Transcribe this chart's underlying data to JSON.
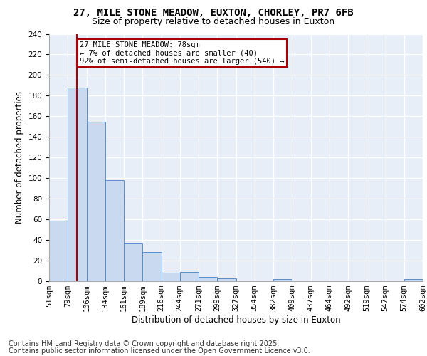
{
  "title_line1": "27, MILE STONE MEADOW, EUXTON, CHORLEY, PR7 6FB",
  "title_line2": "Size of property relative to detached houses in Euxton",
  "xlabel": "Distribution of detached houses by size in Euxton",
  "ylabel": "Number of detached properties",
  "bins": [
    "51sqm",
    "79sqm",
    "106sqm",
    "134sqm",
    "161sqm",
    "189sqm",
    "216sqm",
    "244sqm",
    "271sqm",
    "299sqm",
    "327sqm",
    "354sqm",
    "382sqm",
    "409sqm",
    "437sqm",
    "464sqm",
    "492sqm",
    "519sqm",
    "547sqm",
    "574sqm",
    "602sqm"
  ],
  "values": [
    59,
    188,
    155,
    98,
    37,
    28,
    8,
    9,
    4,
    3,
    0,
    0,
    2,
    0,
    0,
    0,
    0,
    0,
    0,
    2
  ],
  "bar_color": "#c8d9f0",
  "bar_edge_color": "#5b8dc8",
  "bg_color": "#e8eef8",
  "grid_color": "#ffffff",
  "vline_x_idx": 1,
  "vline_color": "#aa0000",
  "annotation_text": "27 MILE STONE MEADOW: 78sqm\n← 7% of detached houses are smaller (40)\n92% of semi-detached houses are larger (540) →",
  "annotation_box_color": "#aa0000",
  "ylim": [
    0,
    240
  ],
  "yticks": [
    0,
    20,
    40,
    60,
    80,
    100,
    120,
    140,
    160,
    180,
    200,
    220,
    240
  ],
  "footer_line1": "Contains HM Land Registry data © Crown copyright and database right 2025.",
  "footer_line2": "Contains public sector information licensed under the Open Government Licence v3.0.",
  "title_fontsize": 10,
  "subtitle_fontsize": 9,
  "axis_label_fontsize": 8.5,
  "tick_fontsize": 7.5,
  "footer_fontsize": 7,
  "annotation_fontsize": 7.5
}
